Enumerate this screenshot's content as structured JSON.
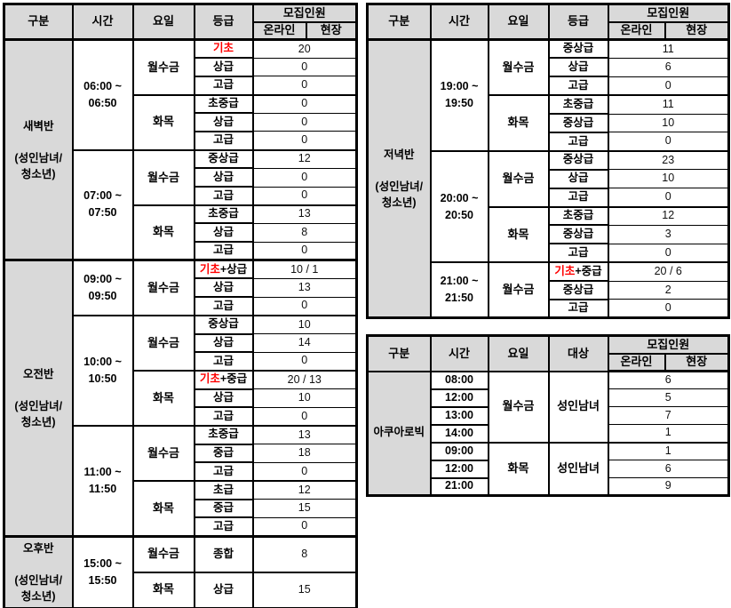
{
  "colors": {
    "header_bg": "#d9d9d9",
    "red": "#ff0000",
    "border": "#000000",
    "page_bg": "#ffffff"
  },
  "left_table": {
    "headers": {
      "category": "구분",
      "time": "시간",
      "day": "요일",
      "grade": "등급",
      "recruit": "모집인원",
      "online": "온라인",
      "onsite": "현장"
    },
    "groups": [
      {
        "category_lines": [
          "새벽반",
          "",
          "(성인남녀/",
          "청소년)"
        ],
        "blocks": [
          {
            "time_lines": [
              "06:00 ~",
              "06:50"
            ],
            "day_groups": [
              {
                "day": "월수금",
                "rows": [
                  {
                    "red_part": "기초",
                    "black_part": "",
                    "value": "20"
                  },
                  {
                    "grade": "상급",
                    "value": "0"
                  },
                  {
                    "grade": "고급",
                    "value": "0"
                  }
                ]
              },
              {
                "day": "화목",
                "rows": [
                  {
                    "grade": "초중급",
                    "value": "0"
                  },
                  {
                    "grade": "상급",
                    "value": "0"
                  },
                  {
                    "grade": "고급",
                    "value": "0"
                  }
                ]
              }
            ]
          },
          {
            "time_lines": [
              "07:00 ~",
              "07:50"
            ],
            "day_groups": [
              {
                "day": "월수금",
                "rows": [
                  {
                    "grade": "중상급",
                    "value": "12"
                  },
                  {
                    "grade": "상급",
                    "value": "0"
                  },
                  {
                    "grade": "고급",
                    "value": "0"
                  }
                ]
              },
              {
                "day": "화목",
                "rows": [
                  {
                    "grade": "초중급",
                    "value": "13"
                  },
                  {
                    "grade": "상급",
                    "value": "8"
                  },
                  {
                    "grade": "고급",
                    "value": "0"
                  }
                ]
              }
            ]
          }
        ]
      },
      {
        "category_lines": [
          "오전반",
          "",
          "(성인남녀/",
          "청소년)"
        ],
        "blocks": [
          {
            "time_lines": [
              "09:00 ~",
              "09:50"
            ],
            "day_groups": [
              {
                "day": "월수금",
                "rows": [
                  {
                    "red_part": "기초",
                    "black_part": "+상급",
                    "value": "10 / 1"
                  },
                  {
                    "grade": "상급",
                    "value": "13"
                  },
                  {
                    "grade": "고급",
                    "value": "0"
                  }
                ]
              }
            ]
          },
          {
            "time_lines": [
              "10:00 ~",
              "10:50"
            ],
            "day_groups": [
              {
                "day": "월수금",
                "rows": [
                  {
                    "grade": "중상급",
                    "value": "10"
                  },
                  {
                    "grade": "상급",
                    "value": "14"
                  },
                  {
                    "grade": "고급",
                    "value": "0"
                  }
                ]
              },
              {
                "day": "화목",
                "rows": [
                  {
                    "red_part": "기초",
                    "black_part": "+중급",
                    "value": "20 / 13"
                  },
                  {
                    "grade": "상급",
                    "value": "10"
                  },
                  {
                    "grade": "고급",
                    "value": "0"
                  }
                ]
              }
            ]
          },
          {
            "time_lines": [
              "11:00 ~",
              "11:50"
            ],
            "day_groups": [
              {
                "day": "월수금",
                "rows": [
                  {
                    "grade": "초중급",
                    "value": "13"
                  },
                  {
                    "grade": "중급",
                    "value": "18"
                  },
                  {
                    "grade": "고급",
                    "value": "0"
                  }
                ]
              },
              {
                "day": "화목",
                "rows": [
                  {
                    "grade": "초급",
                    "value": "12"
                  },
                  {
                    "grade": "중급",
                    "value": "15"
                  },
                  {
                    "grade": "고급",
                    "value": "0"
                  }
                ]
              }
            ]
          }
        ]
      },
      {
        "category_lines": [
          "오후반",
          "",
          "(성인남녀/",
          "청소년)"
        ],
        "tall": true,
        "blocks": [
          {
            "time_lines": [
              "15:00 ~",
              "15:50"
            ],
            "day_groups": [
              {
                "day": "월수금",
                "rows": [
                  {
                    "grade": "종합",
                    "value": "8"
                  }
                ]
              },
              {
                "day": "화목",
                "rows": [
                  {
                    "grade": "상급",
                    "value": "15"
                  }
                ]
              }
            ]
          }
        ]
      }
    ]
  },
  "evening_table": {
    "headers": {
      "category": "구분",
      "time": "시간",
      "day": "요일",
      "grade": "등급",
      "recruit": "모집인원",
      "online": "온라인",
      "onsite": "현장"
    },
    "groups": [
      {
        "category_lines": [
          "저녁반",
          "",
          "(성인남녀/",
          "청소년)"
        ],
        "blocks": [
          {
            "time_lines": [
              "19:00 ~",
              "19:50"
            ],
            "day_groups": [
              {
                "day": "월수금",
                "rows": [
                  {
                    "grade": "중상급",
                    "value": "11"
                  },
                  {
                    "grade": "상급",
                    "value": "6"
                  },
                  {
                    "grade": "고급",
                    "value": "0"
                  }
                ]
              },
              {
                "day": "화목",
                "rows": [
                  {
                    "grade": "초중급",
                    "value": "11"
                  },
                  {
                    "grade": "중상급",
                    "value": "10"
                  },
                  {
                    "grade": "고급",
                    "value": "0"
                  }
                ]
              }
            ]
          },
          {
            "time_lines": [
              "20:00 ~",
              "20:50"
            ],
            "day_groups": [
              {
                "day": "월수금",
                "rows": [
                  {
                    "grade": "중상급",
                    "value": "23"
                  },
                  {
                    "grade": "상급",
                    "value": "10"
                  },
                  {
                    "grade": "고급",
                    "value": "0"
                  }
                ]
              },
              {
                "day": "화목",
                "rows": [
                  {
                    "grade": "초중급",
                    "value": "12"
                  },
                  {
                    "grade": "중상급",
                    "value": "3"
                  },
                  {
                    "grade": "고급",
                    "value": "0"
                  }
                ]
              }
            ]
          },
          {
            "time_lines": [
              "21:00 ~",
              "21:50"
            ],
            "day_groups": [
              {
                "day": "월수금",
                "rows": [
                  {
                    "red_part": "기초",
                    "black_part": "+중급",
                    "value": "20 / 6"
                  },
                  {
                    "grade": "중상급",
                    "value": "2"
                  },
                  {
                    "grade": "고급",
                    "value": "0"
                  }
                ]
              }
            ]
          }
        ]
      }
    ]
  },
  "aqua_table": {
    "headers": {
      "category": "구분",
      "time": "시간",
      "day": "요일",
      "target": "대상",
      "recruit": "모집인원",
      "online": "온라인",
      "onsite": "현장"
    },
    "category": "아쿠아로빅",
    "groups": [
      {
        "day": "월수금",
        "target": "성인남녀",
        "rows": [
          {
            "time": "08:00",
            "value": "6"
          },
          {
            "time": "12:00",
            "value": "5"
          },
          {
            "time": "13:00",
            "value": "7"
          },
          {
            "time": "14:00",
            "value": "1"
          }
        ]
      },
      {
        "day": "화목",
        "target": "성인남녀",
        "rows": [
          {
            "time": "09:00",
            "value": "1"
          },
          {
            "time": "12:00",
            "value": "6"
          },
          {
            "time": "21:00",
            "value": "9"
          }
        ]
      }
    ]
  }
}
